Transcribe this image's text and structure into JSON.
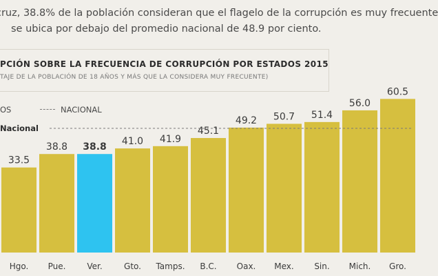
{
  "intro": {
    "line1": "cruz, 38.8% de la población consideran que el flagelo de la corrupción es muy frecuente",
    "line2": "se ubica por debajo del promedio nacional de 48.9 por ciento."
  },
  "chart_data": {
    "type": "bar",
    "title": "PCIÓN SOBRE LA FRECUENCIA DE CORRUPCIÓN POR ESTADOS 2015",
    "subtitle": "TAJE DE LA POBLACIÓN DE 18 AÑOS Y MÁS QUE LA CONSIDERA MUY FRECUENTE)",
    "legend": {
      "series_label": "OS",
      "national_label": "NACIONAL"
    },
    "national_line_label": "Nacional",
    "national_value": 48.9,
    "categories": [
      "Hgo.",
      "Pue.",
      "Ver.",
      "Gto.",
      "Tamps.",
      "B.C.",
      "Oax.",
      "Mex.",
      "Sin.",
      "Mich.",
      "Gro."
    ],
    "values": [
      33.5,
      38.8,
      38.8,
      41.0,
      41.9,
      45.1,
      49.2,
      50.7,
      51.4,
      56.0,
      60.5
    ],
    "value_labels": [
      "33.5",
      "38.8",
      "38.8",
      "41.0",
      "41.9",
      "45.1",
      "49.2",
      "50.7",
      "51.4",
      "56.0",
      "60.5"
    ],
    "highlight_category": "Ver.",
    "colors": {
      "bar": "#d6bf3f",
      "highlight": "#2ec3f0",
      "line": "#7a7a7a"
    },
    "ylim": [
      0,
      62
    ],
    "grid": false
  }
}
